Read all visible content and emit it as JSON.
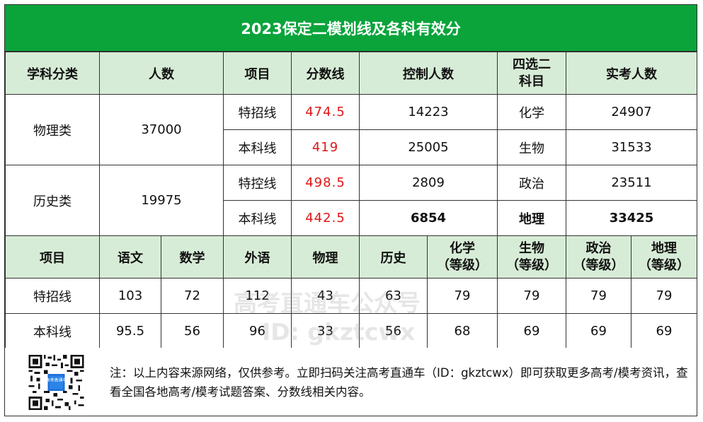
{
  "title": "2023保定二模划线及各科有效分",
  "top_table": {
    "headers": [
      "学科分类",
      "人数",
      "项目",
      "分数线",
      "控制人数",
      "四选二\n科目",
      "实考人数"
    ],
    "groups": [
      {
        "category": "物理类",
        "count": "37000",
        "rows": [
          {
            "item": "特招线",
            "score": "474.5",
            "control": "14223",
            "subject": "化学",
            "actual": "24907"
          },
          {
            "item": "本科线",
            "score": "419",
            "control": "25005",
            "subject": "生物",
            "actual": "31533"
          }
        ]
      },
      {
        "category": "历史类",
        "count": "19975",
        "rows": [
          {
            "item": "特控线",
            "score": "498.5",
            "control": "2809",
            "subject": "政治",
            "actual": "23511"
          },
          {
            "item": "本科线",
            "score": "442.5",
            "control": "6854",
            "subject": "地理",
            "actual": "33425"
          }
        ]
      }
    ]
  },
  "bottom_table": {
    "headers": [
      "项目",
      "语文",
      "数学",
      "外语",
      "物理",
      "历史",
      "化学\n（等级）",
      "生物\n（等级）",
      "政治\n（等级）",
      "地理\n（等级）"
    ],
    "rows": [
      [
        "特招线",
        "103",
        "72",
        "112",
        "43",
        "63",
        "79",
        "79",
        "79",
        "79"
      ],
      [
        "本科线",
        "95.5",
        "56",
        "96",
        "33",
        "56",
        "68",
        "69",
        "69",
        "69"
      ]
    ]
  },
  "footer": {
    "note": "注：以上内容来源网络，仅供参考。立即扫码关注高考直通车（ID：gkztcwx）即可获取更多高考/模考资讯，查看全国各地高考/模考试题答案、分数线相关内容。",
    "qr_caption": "高考直通车"
  },
  "watermark": {
    "line1": "高考直通车公众号",
    "line2": "ID: gkztcwx"
  },
  "colors": {
    "title_bg": "#0aa43b",
    "header_bg": "#d7ecd6",
    "score_red": "#e01616"
  }
}
